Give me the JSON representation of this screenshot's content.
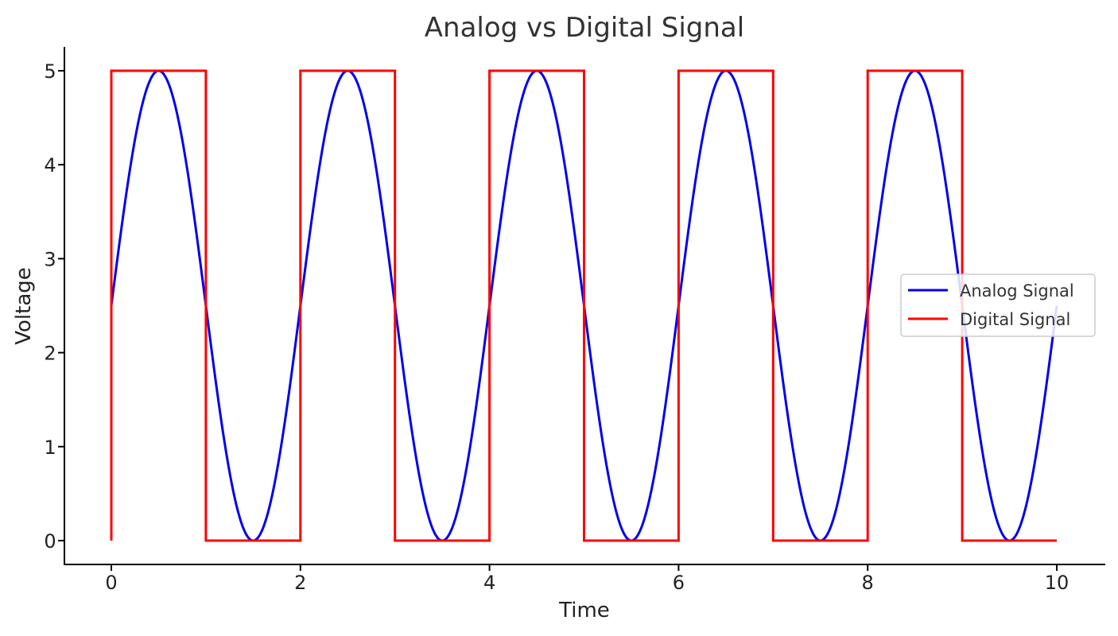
{
  "chart_data": {
    "type": "line",
    "title": "Analog vs Digital Signal",
    "xlabel": "Time",
    "ylabel": "Voltage",
    "xlim": [
      -0.5,
      10.5
    ],
    "ylim": [
      -0.25,
      5.25
    ],
    "x_ticks": [
      0,
      2,
      4,
      6,
      8,
      10
    ],
    "y_ticks": [
      0,
      1,
      2,
      3,
      4,
      5
    ],
    "grid": false,
    "legend_position": "center-right",
    "series": [
      {
        "name": "Analog Signal",
        "color": "#0000ee",
        "kind": "function",
        "formula": "2.5 + 2.5*sin(pi*t)",
        "x_range": [
          0,
          10
        ],
        "amplitude": 2.5,
        "offset": 2.5,
        "period": 2
      },
      {
        "name": "Digital Signal",
        "color": "#ff0000",
        "kind": "step",
        "x": [
          0,
          0,
          1,
          1,
          2,
          2,
          3,
          3,
          4,
          4,
          5,
          5,
          6,
          6,
          7,
          7,
          8,
          8,
          9,
          9,
          10
        ],
        "values": [
          0,
          5,
          5,
          0,
          0,
          5,
          5,
          0,
          0,
          5,
          5,
          0,
          0,
          5,
          5,
          0,
          0,
          5,
          5,
          0,
          0
        ]
      }
    ]
  }
}
